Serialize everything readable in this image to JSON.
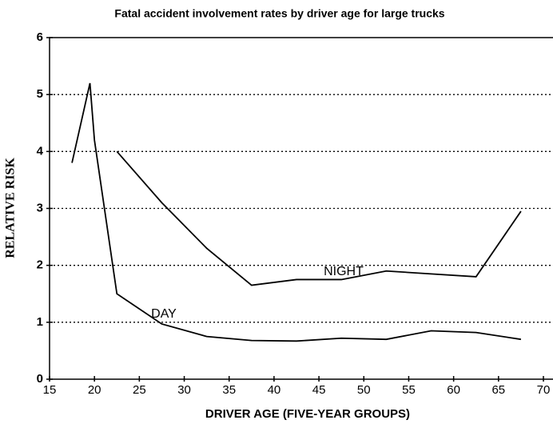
{
  "chart_data": {
    "type": "line",
    "title": "Fatal accident involvement rates by driver age for large trucks",
    "xlabel": "DRIVER AGE (FIVE-YEAR GROUPS)",
    "ylabel": "RELATIVE RISK",
    "xlim": [
      15,
      70
    ],
    "ylim": [
      0,
      6
    ],
    "xticks": [
      15,
      20,
      25,
      30,
      35,
      40,
      45,
      50,
      55,
      60,
      65,
      70
    ],
    "yticks": [
      0,
      1,
      2,
      3,
      4,
      5,
      6
    ],
    "grid": true,
    "annotations": [
      "NIGHT",
      "DAY"
    ],
    "series": [
      {
        "name": "DAY",
        "color": "#000000",
        "x": [
          17.5,
          19.5,
          20,
          22.5,
          27.5,
          32.5,
          37.5,
          42.5,
          47.5,
          52.5,
          57.5,
          62.5,
          67.5
        ],
        "values": [
          3.8,
          5.2,
          4.2,
          1.5,
          0.97,
          0.75,
          0.68,
          0.67,
          0.72,
          0.7,
          0.85,
          0.82,
          0.7
        ]
      },
      {
        "name": "NIGHT",
        "color": "#000000",
        "x": [
          22.5,
          27.5,
          32.5,
          37.5,
          42.5,
          47.5,
          52.5,
          57.5,
          62.5,
          67.5
        ],
        "values": [
          4.0,
          3.1,
          2.3,
          1.65,
          1.75,
          1.75,
          1.9,
          1.85,
          1.8,
          2.95
        ]
      }
    ]
  }
}
